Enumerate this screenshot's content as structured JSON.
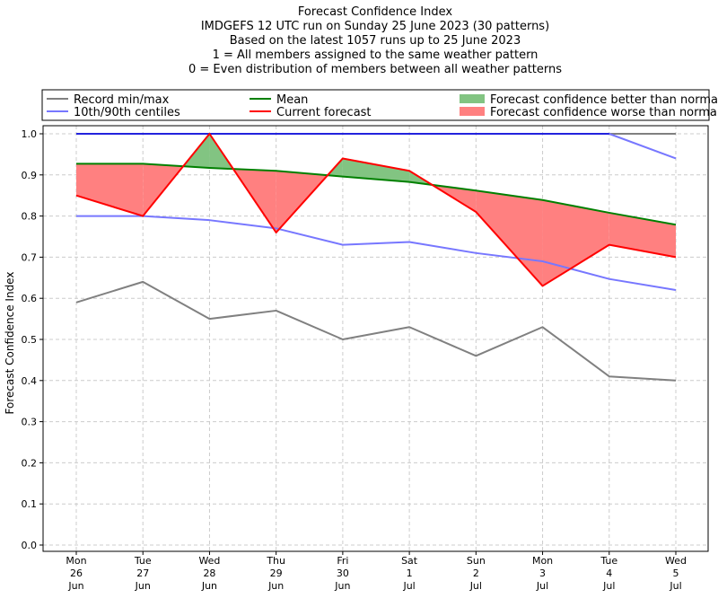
{
  "chart_data": {
    "type": "line",
    "title_lines": [
      "Forecast Confidence Index",
      "IMDGEFS 12 UTC run on Sunday 25 June 2023 (30 patterns)",
      "Based on the latest 1057 runs up to 25 June 2023",
      "1 = All members assigned to the same weather pattern",
      "0 = Even distribution of members between all weather patterns"
    ],
    "ylabel": "Forecast Confidence Index",
    "xlabel": "",
    "ylim": [
      0,
      1.0
    ],
    "yticks": [
      "0.0",
      "0.1",
      "0.2",
      "0.3",
      "0.4",
      "0.5",
      "0.6",
      "0.7",
      "0.8",
      "0.9",
      "1.0"
    ],
    "categories": [
      [
        "Mon",
        "26",
        "Jun"
      ],
      [
        "Tue",
        "27",
        "Jun"
      ],
      [
        "Wed",
        "28",
        "Jun"
      ],
      [
        "Thu",
        "29",
        "Jun"
      ],
      [
        "Fri",
        "30",
        "Jun"
      ],
      [
        "Sat",
        "1",
        "Jul"
      ],
      [
        "Sun",
        "2",
        "Jul"
      ],
      [
        "Mon",
        "3",
        "Jul"
      ],
      [
        "Tue",
        "4",
        "Jul"
      ],
      [
        "Wed",
        "5",
        "Jul"
      ]
    ],
    "grid": true,
    "legend_placement": "top, above plot",
    "legend": [
      "Record min/max",
      "Mean",
      "Forecast confidence better than normal",
      "10th/90th centiles",
      "Current forecast",
      "Forecast confidence worse than normal"
    ],
    "series": {
      "record_max": [
        1.0,
        1.0,
        1.0,
        1.0,
        1.0,
        1.0,
        1.0,
        1.0,
        1.0,
        1.0
      ],
      "record_min": [
        0.59,
        0.64,
        0.55,
        0.57,
        0.5,
        0.53,
        0.46,
        0.53,
        0.41,
        0.4
      ],
      "centile_90": [
        1.0,
        1.0,
        1.0,
        1.0,
        1.0,
        1.0,
        1.0,
        1.0,
        1.0,
        0.94
      ],
      "centile_10": [
        0.8,
        0.8,
        0.79,
        0.77,
        0.73,
        0.737,
        0.71,
        0.69,
        0.647,
        0.62
      ],
      "mean": [
        0.927,
        0.927,
        0.917,
        0.91,
        0.896,
        0.883,
        0.862,
        0.839,
        0.808,
        0.779
      ],
      "current": [
        0.85,
        0.8,
        1.0,
        0.76,
        0.94,
        0.91,
        0.81,
        0.63,
        0.73,
        0.7
      ]
    },
    "colors": {
      "record": "#808080",
      "centile": "#7777ff",
      "centile_top": "#2222dd",
      "mean": "#008000",
      "current": "#ff0000",
      "better_fill": "#82c482",
      "worse_fill": "#ff8080",
      "grid": "#cccccc"
    }
  }
}
